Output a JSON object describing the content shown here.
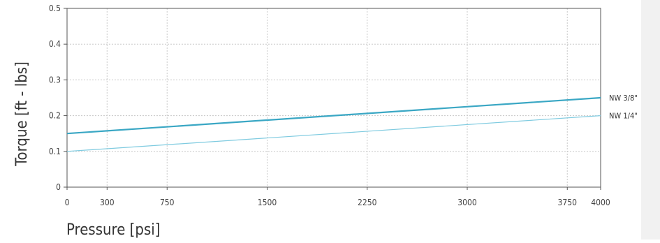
{
  "chart_data": {
    "type": "line",
    "title": "",
    "xlabel": "Pressure [psi]",
    "ylabel": "Torque [ft - lbs]",
    "xlim": [
      0,
      4000
    ],
    "ylim": [
      0,
      0.5
    ],
    "x_ticks": [
      0,
      300,
      750,
      1500,
      2250,
      3000,
      3750,
      4000
    ],
    "x_tick_labels": [
      "0",
      "300",
      "750",
      "1500",
      "2250",
      "3000",
      "3750",
      "4000"
    ],
    "y_ticks": [
      0,
      0.1,
      0.2,
      0.3,
      0.4,
      0.5
    ],
    "y_tick_labels": [
      "0",
      "0.1",
      "0.2",
      "0.3",
      "0.4",
      "0.5"
    ],
    "grid": true,
    "series": [
      {
        "name": "NW 3/8\"",
        "x": [
          0,
          4000
        ],
        "y": [
          0.15,
          0.25
        ],
        "color": "#3aa7c4",
        "width": 2.2
      },
      {
        "name": "NW 1/4\"",
        "x": [
          0,
          4000
        ],
        "y": [
          0.1,
          0.2
        ],
        "color": "#7fcbe0",
        "width": 1.2
      }
    ]
  }
}
